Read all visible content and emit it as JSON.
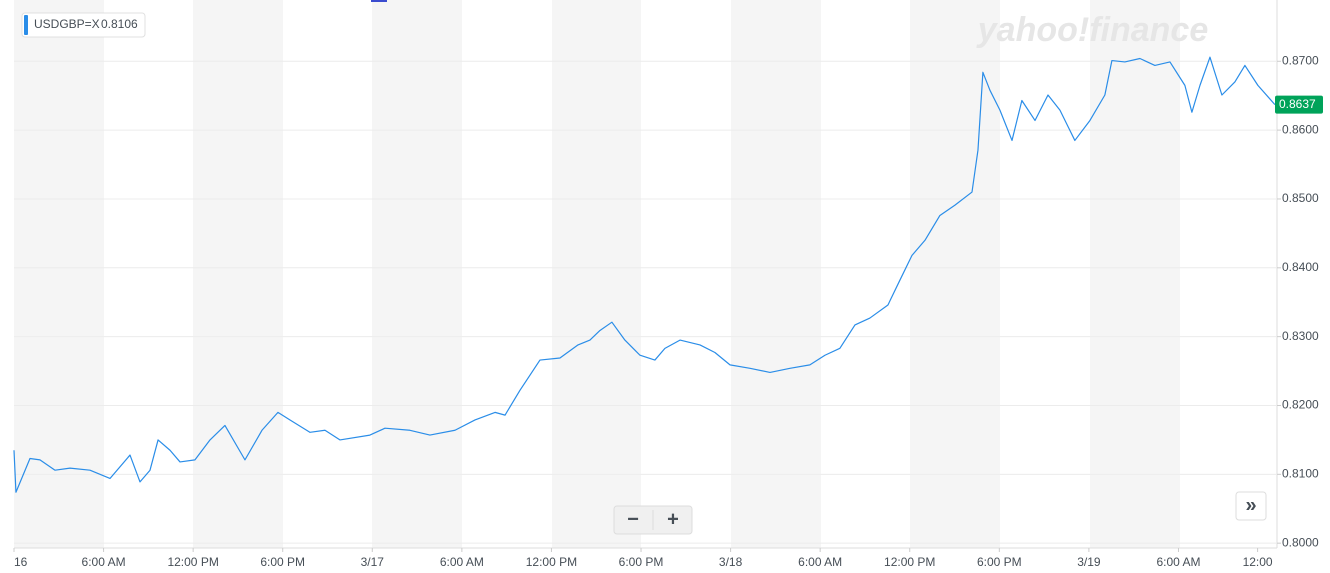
{
  "chart_data": {
    "type": "line",
    "watermark": "yahoo!finance",
    "current_price": {
      "value": 0.8637,
      "label": "0.8637"
    },
    "reference_price": {
      "value": 0.8106,
      "label": "0.8106"
    },
    "controls": {
      "zoom_out": "−",
      "zoom_in": "+",
      "expand": "»"
    },
    "x": [
      0,
      0.13,
      1.07,
      1.74,
      2.75,
      3.75,
      5.09,
      6.43,
      7.77,
      8.44,
      9.11,
      9.65,
      10.45,
      11.12,
      12.12,
      13.13,
      14.13,
      15.47,
      16.61,
      17.68,
      18.49,
      19.83,
      20.83,
      21.83,
      23.84,
      24.85,
      26.52,
      27.86,
      29.54,
      30.88,
      32.22,
      32.89,
      33.89,
      35.23,
      36.57,
      37.78,
      38.58,
      39.25,
      40.05,
      40.92,
      41.93,
      42.93,
      43.6,
      44.61,
      45.95,
      46.95,
      47.96,
      49.3,
      50.64,
      51.98,
      53.31,
      54.32,
      55.32,
      56.33,
      57.33,
      58.54,
      59.34,
      60.15,
      61.02,
      62.02,
      63.03,
      64.17,
      64.57,
      64.9,
      65.37,
      66.04,
      66.85,
      67.51,
      68.39,
      69.26,
      70.06,
      71.06,
      72.07,
      73.07,
      73.54,
      74.41,
      75.42,
      76.42,
      77.43,
      78.43,
      78.9,
      79.44,
      80.11,
      80.91,
      81.78,
      82.45,
      83.32,
      84.46
    ],
    "series": [
      {
        "name": "USDGBP=X",
        "color": "#2a8de8",
        "values": [
          0.8135,
          0.8074,
          0.8123,
          0.8121,
          0.8106,
          0.8109,
          0.8106,
          0.8094,
          0.8128,
          0.8089,
          0.8106,
          0.815,
          0.8135,
          0.8118,
          0.8121,
          0.815,
          0.8171,
          0.8121,
          0.8164,
          0.819,
          0.8179,
          0.8161,
          0.8164,
          0.815,
          0.8157,
          0.8167,
          0.8164,
          0.8157,
          0.8164,
          0.8179,
          0.819,
          0.8186,
          0.8222,
          0.8266,
          0.8269,
          0.8288,
          0.8295,
          0.8309,
          0.8321,
          0.8295,
          0.8273,
          0.8266,
          0.8283,
          0.8295,
          0.8288,
          0.8277,
          0.8259,
          0.8254,
          0.8248,
          0.8254,
          0.8259,
          0.8273,
          0.8283,
          0.8317,
          0.8327,
          0.8346,
          0.8382,
          0.8418,
          0.844,
          0.8476,
          0.8491,
          0.851,
          0.8571,
          0.8684,
          0.8658,
          0.8629,
          0.8585,
          0.8643,
          0.8614,
          0.8651,
          0.8629,
          0.8585,
          0.8614,
          0.8651,
          0.8701,
          0.8699,
          0.8704,
          0.8694,
          0.8699,
          0.8665,
          0.8626,
          0.8665,
          0.8706,
          0.8651,
          0.867,
          0.8694,
          0.8665,
          0.8637
        ]
      }
    ],
    "xlim": [
      0,
      84.6
    ],
    "xticks": [
      {
        "value": 0,
        "label": "16"
      },
      {
        "value": 6,
        "label": "6:00 AM"
      },
      {
        "value": 12,
        "label": "12:00 PM"
      },
      {
        "value": 18,
        "label": "6:00 PM"
      },
      {
        "value": 24,
        "label": "3/17"
      },
      {
        "value": 30,
        "label": "6:00 AM"
      },
      {
        "value": 36,
        "label": "12:00 PM"
      },
      {
        "value": 42,
        "label": "6:00 PM"
      },
      {
        "value": 48,
        "label": "3/18"
      },
      {
        "value": 54,
        "label": "6:00 AM"
      },
      {
        "value": 60,
        "label": "12:00 PM"
      },
      {
        "value": 66,
        "label": "6:00 PM"
      },
      {
        "value": 72,
        "label": "3/19"
      },
      {
        "value": 78,
        "label": "6:00 AM"
      },
      {
        "value": 83.3,
        "label": "12:00"
      }
    ],
    "ylim": [
      0.7993,
      0.8789
    ],
    "yticks": [
      {
        "value": 0.8,
        "label": "0.8000"
      },
      {
        "value": 0.81,
        "label": "0.8100"
      },
      {
        "value": 0.82,
        "label": "0.8200"
      },
      {
        "value": 0.83,
        "label": "0.8300"
      },
      {
        "value": 0.84,
        "label": "0.8400"
      },
      {
        "value": 0.85,
        "label": "0.8500"
      },
      {
        "value": 0.86,
        "label": "0.8600"
      },
      {
        "value": 0.87,
        "label": "0.8700"
      }
    ],
    "grid": true
  }
}
